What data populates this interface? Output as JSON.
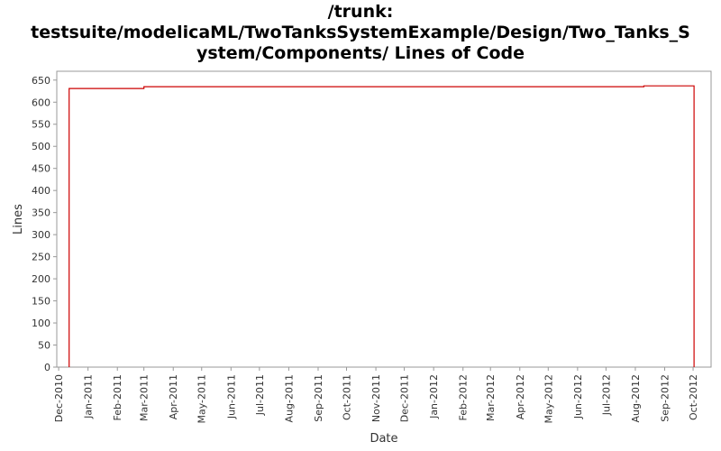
{
  "chart_data": {
    "type": "line",
    "title_lines": [
      "/trunk:",
      "testsuite/modelicaML/TwoTanksSystemExample/Design/Two_Tanks_S",
      "ystem/Components/ Lines of Code"
    ],
    "xlabel": "Date",
    "ylabel": "Lines",
    "ylim": [
      0,
      670
    ],
    "yticks": [
      0,
      50,
      100,
      150,
      200,
      250,
      300,
      350,
      400,
      450,
      500,
      550,
      600,
      650
    ],
    "xlim": [
      "2010-11-29",
      "2012-10-20"
    ],
    "xticks": [
      "Dec-2010",
      "Jan-2011",
      "Feb-2011",
      "Mar-2011",
      "Apr-2011",
      "May-2011",
      "Jun-2011",
      "Jul-2011",
      "Aug-2011",
      "Sep-2011",
      "Oct-2011",
      "Nov-2011",
      "Dec-2011",
      "Jan-2012",
      "Feb-2012",
      "Mar-2012",
      "Apr-2012",
      "May-2012",
      "Jun-2012",
      "Jul-2012",
      "Aug-2012",
      "Sep-2012",
      "Oct-2012"
    ],
    "xtick_dates": [
      "2010-12-01",
      "2011-01-01",
      "2011-02-01",
      "2011-03-01",
      "2011-04-01",
      "2011-05-01",
      "2011-06-01",
      "2011-07-01",
      "2011-08-01",
      "2011-09-01",
      "2011-10-01",
      "2011-11-01",
      "2011-12-01",
      "2012-01-01",
      "2012-02-01",
      "2012-03-01",
      "2012-04-01",
      "2012-05-01",
      "2012-06-01",
      "2012-07-01",
      "2012-08-01",
      "2012-09-01",
      "2012-10-01"
    ],
    "series": [
      {
        "color": "#cc0000",
        "step": true,
        "points": [
          {
            "x": "2010-12-12",
            "y": 0
          },
          {
            "x": "2010-12-12",
            "y": 631
          },
          {
            "x": "2011-03-01",
            "y": 631
          },
          {
            "x": "2011-03-01",
            "y": 635
          },
          {
            "x": "2012-08-10",
            "y": 635
          },
          {
            "x": "2012-08-10",
            "y": 637
          },
          {
            "x": "2012-10-02",
            "y": 637
          },
          {
            "x": "2012-10-02",
            "y": 0
          }
        ]
      }
    ],
    "grid": false
  }
}
